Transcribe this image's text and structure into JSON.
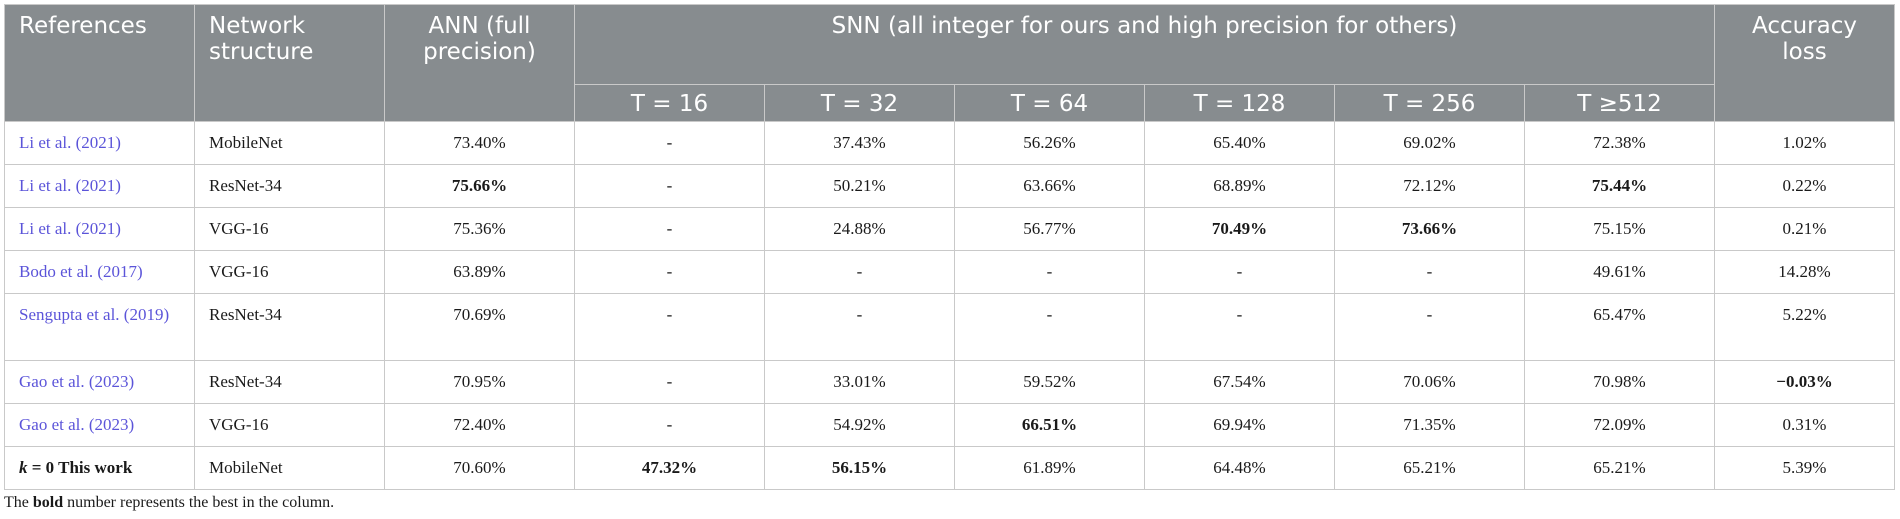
{
  "header": {
    "references": "References",
    "network_structure": "Network structure",
    "ann": "ANN (full precision)",
    "snn": "SNN (all integer for ours and high precision for others)",
    "accuracy_loss": "Accuracy loss",
    "t16": "T = 16",
    "t32": "T = 32",
    "t64": "T = 64",
    "t128": "T = 128",
    "t256": "T = 256",
    "t512": "T ≥512"
  },
  "rows": [
    {
      "ref": "Li et al. (2021)",
      "net": "MobileNet",
      "ann": "73.40%",
      "t16": "-",
      "t32": "37.43%",
      "t64": "56.26%",
      "t128": "65.40%",
      "t256": "69.02%",
      "t512": "72.38%",
      "loss": "1.02%"
    },
    {
      "ref": "Li et al. (2021)",
      "net": "ResNet-34",
      "ann": "75.66%",
      "t16": "-",
      "t32": "50.21%",
      "t64": "63.66%",
      "t128": "68.89%",
      "t256": "72.12%",
      "t512": "75.44%",
      "loss": "0.22%"
    },
    {
      "ref": "Li et al. (2021)",
      "net": "VGG-16",
      "ann": "75.36%",
      "t16": "-",
      "t32": "24.88%",
      "t64": "56.77%",
      "t128": "70.49%",
      "t256": "73.66%",
      "t512": "75.15%",
      "loss": "0.21%"
    },
    {
      "ref": "Bodo et al. (2017)",
      "net": "VGG-16",
      "ann": "63.89%",
      "t16": "-",
      "t32": "-",
      "t64": "-",
      "t128": "-",
      "t256": "-",
      "t512": "49.61%",
      "loss": "14.28%"
    },
    {
      "ref": "Sengupta et al. (2019)",
      "net": "ResNet-34",
      "ann": "70.69%",
      "t16": "-",
      "t32": "-",
      "t64": "-",
      "t128": "-",
      "t256": "-",
      "t512": "65.47%",
      "loss": "5.22%"
    },
    {
      "ref": "Gao et al. (2023)",
      "net": "ResNet-34",
      "ann": "70.95%",
      "t16": "-",
      "t32": "33.01%",
      "t64": "59.52%",
      "t128": "67.54%",
      "t256": "70.06%",
      "t512": "70.98%",
      "loss": "−0.03%"
    },
    {
      "ref": "Gao et al. (2023)",
      "net": "VGG-16",
      "ann": "72.40%",
      "t16": "-",
      "t32": "54.92%",
      "t64": "66.51%",
      "t128": "69.94%",
      "t256": "71.35%",
      "t512": "72.09%",
      "loss": "0.31%"
    },
    {
      "ref_k": "k",
      "ref_rest": " = 0 This work",
      "net": "MobileNet",
      "ann": "70.60%",
      "t16": "47.32%",
      "t32": "56.15%",
      "t64": "61.89%",
      "t128": "64.48%",
      "t256": "65.21%",
      "t512": "65.21%",
      "loss": "5.39%"
    }
  ],
  "caption": {
    "pre": "The ",
    "bold": "bold",
    "post": " number represents the best in the column."
  }
}
